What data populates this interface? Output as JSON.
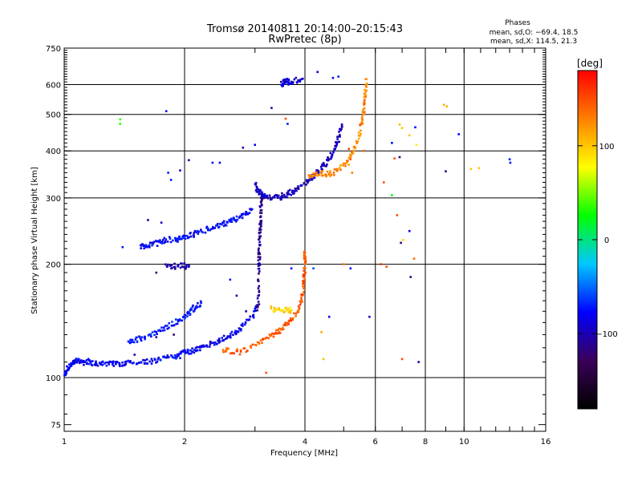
{
  "chart_data": {
    "type": "scatter",
    "title": "Tromsø 20140811 20:14:00–20:15:43",
    "subtitle": "RwPretec (8p)",
    "phases_header": "Phases",
    "phases_lines": [
      "mean, sd,O: −69.4, 18.5",
      "mean, sd,X: 114.5, 21.3"
    ],
    "xlabel": "Frequency [MHz]",
    "ylabel": "Stationary phase Virtual Height [km]",
    "x_scale": "log",
    "y_scale": "log",
    "xlim": [
      1,
      16
    ],
    "ylim": [
      72,
      750
    ],
    "x_ticks": [
      1,
      2,
      4,
      6,
      8,
      10,
      16
    ],
    "x_ticklabels": [
      "1",
      "2",
      "4",
      "6",
      "8",
      "10",
      "16"
    ],
    "x_gridlines": [
      2,
      4,
      6,
      8,
      10
    ],
    "y_ticks": [
      75,
      100,
      200,
      300,
      400,
      500,
      600,
      750
    ],
    "y_ticklabels": [
      "75",
      "100",
      "200",
      "300",
      "400",
      "500",
      "600",
      "750"
    ],
    "y_gridlines": [
      100,
      200,
      300,
      400,
      500,
      600
    ],
    "grid": true,
    "colorbar": {
      "label": "[deg]",
      "range": [
        -180,
        180
      ],
      "ticks": [
        100,
        0,
        -100
      ],
      "ticklabels": [
        "100",
        "0",
        "−100"
      ],
      "colors": [
        "#000000",
        "#3a0058",
        "#0000ff",
        "#00c8ff",
        "#00ff00",
        "#ffff00",
        "#ff8000",
        "#ff0000"
      ]
    },
    "traces": [
      {
        "phase": -80,
        "points": [
          [
            1.0,
            102
          ],
          [
            1.02,
            106
          ],
          [
            1.05,
            109
          ],
          [
            1.08,
            111
          ],
          [
            1.12,
            110
          ],
          [
            1.18,
            109
          ],
          [
            1.25,
            109
          ],
          [
            1.35,
            109
          ],
          [
            1.45,
            109
          ],
          [
            1.6,
            110
          ],
          [
            1.75,
            112
          ],
          [
            1.9,
            114
          ],
          [
            2.0,
            116
          ],
          [
            2.1,
            118
          ],
          [
            2.2,
            120
          ],
          [
            2.35,
            123
          ],
          [
            2.5,
            127
          ],
          [
            2.65,
            131
          ],
          [
            2.8,
            137
          ],
          [
            2.95,
            145
          ],
          [
            3.05,
            155
          ]
        ]
      },
      {
        "phase": -72,
        "points": [
          [
            1.45,
            123
          ],
          [
            1.55,
            127
          ],
          [
            1.7,
            131
          ],
          [
            1.85,
            138
          ],
          [
            2.0,
            145
          ],
          [
            2.1,
            152
          ],
          [
            2.2,
            158
          ]
        ]
      },
      {
        "phase": -78,
        "points": [
          [
            1.55,
            221
          ],
          [
            1.65,
            226
          ],
          [
            1.75,
            230
          ],
          [
            1.9,
            233
          ],
          [
            2.05,
            238
          ],
          [
            2.2,
            244
          ],
          [
            2.35,
            250
          ],
          [
            2.5,
            256
          ],
          [
            2.65,
            263
          ],
          [
            2.8,
            270
          ],
          [
            2.95,
            280
          ]
        ]
      },
      {
        "phase": -98,
        "points": [
          [
            3.0,
            330
          ],
          [
            3.05,
            312
          ],
          [
            3.15,
            305
          ],
          [
            3.3,
            301
          ],
          [
            3.5,
            303
          ],
          [
            3.7,
            310
          ],
          [
            3.9,
            320
          ],
          [
            4.1,
            335
          ],
          [
            4.3,
            350
          ],
          [
            4.5,
            370
          ],
          [
            4.7,
            395
          ],
          [
            4.85,
            430
          ],
          [
            4.95,
            470
          ]
        ]
      },
      {
        "phase": -112,
        "points": [
          [
            3.05,
            150
          ],
          [
            3.06,
            175
          ],
          [
            3.07,
            200
          ],
          [
            3.08,
            225
          ],
          [
            3.09,
            250
          ],
          [
            3.1,
            275
          ],
          [
            3.11,
            300
          ]
        ]
      },
      {
        "phase": 145,
        "points": [
          [
            2.5,
            118
          ],
          [
            2.75,
            117
          ],
          [
            3.0,
            121
          ],
          [
            3.2,
            127
          ],
          [
            3.4,
            132
          ],
          [
            3.6,
            138
          ],
          [
            3.8,
            147
          ],
          [
            3.92,
            160
          ],
          [
            3.97,
            175
          ],
          [
            3.99,
            190
          ],
          [
            4.0,
            205
          ],
          [
            4.0,
            215
          ]
        ]
      },
      {
        "phase": 125,
        "points": [
          [
            4.1,
            345
          ],
          [
            4.4,
            348
          ],
          [
            4.7,
            350
          ],
          [
            5.1,
            370
          ],
          [
            5.3,
            400
          ],
          [
            5.5,
            450
          ],
          [
            5.6,
            500
          ],
          [
            5.65,
            550
          ],
          [
            5.7,
            620
          ]
        ]
      },
      {
        "phase": 95,
        "points": [
          [
            3.3,
            152
          ],
          [
            3.5,
            150
          ],
          [
            3.7,
            151
          ]
        ]
      },
      {
        "phase": -90,
        "points": [
          [
            3.5,
            600
          ],
          [
            3.6,
            615
          ],
          [
            3.7,
            608
          ],
          [
            3.95,
            622
          ]
        ]
      },
      {
        "phase": -100,
        "points": [
          [
            1.8,
            197
          ],
          [
            1.95,
            198
          ],
          [
            2.05,
            197
          ]
        ]
      }
    ],
    "scatter_points": [
      {
        "x": 1.38,
        "y": 485,
        "phase": 35
      },
      {
        "x": 1.38,
        "y": 472,
        "phase": 35
      },
      {
        "x": 1.8,
        "y": 510,
        "phase": -75
      },
      {
        "x": 1.82,
        "y": 350,
        "phase": -70
      },
      {
        "x": 1.85,
        "y": 335,
        "phase": -72
      },
      {
        "x": 1.95,
        "y": 355,
        "phase": -90
      },
      {
        "x": 2.05,
        "y": 378,
        "phase": -100
      },
      {
        "x": 2.35,
        "y": 372,
        "phase": -75
      },
      {
        "x": 2.45,
        "y": 372,
        "phase": -75
      },
      {
        "x": 2.8,
        "y": 408,
        "phase": -110
      },
      {
        "x": 3.3,
        "y": 520,
        "phase": -110
      },
      {
        "x": 3.58,
        "y": 487,
        "phase": 150
      },
      {
        "x": 3.62,
        "y": 472,
        "phase": -70
      },
      {
        "x": 4.3,
        "y": 648,
        "phase": -90
      },
      {
        "x": 4.7,
        "y": 625,
        "phase": -80
      },
      {
        "x": 4.85,
        "y": 630,
        "phase": -70
      },
      {
        "x": 6.3,
        "y": 330,
        "phase": 150
      },
      {
        "x": 6.6,
        "y": 305,
        "phase": 20
      },
      {
        "x": 6.7,
        "y": 382,
        "phase": 145
      },
      {
        "x": 6.9,
        "y": 385,
        "phase": -115
      },
      {
        "x": 6.8,
        "y": 270,
        "phase": 150
      },
      {
        "x": 6.95,
        "y": 228,
        "phase": -115
      },
      {
        "x": 7.05,
        "y": 232,
        "phase": 90
      },
      {
        "x": 7.3,
        "y": 245,
        "phase": -85
      },
      {
        "x": 7.35,
        "y": 185,
        "phase": -120
      },
      {
        "x": 7.5,
        "y": 207,
        "phase": 140
      },
      {
        "x": 6.9,
        "y": 470,
        "phase": 105
      },
      {
        "x": 7.0,
        "y": 460,
        "phase": 100
      },
      {
        "x": 7.3,
        "y": 440,
        "phase": 100
      },
      {
        "x": 7.55,
        "y": 462,
        "phase": -75
      },
      {
        "x": 7.6,
        "y": 415,
        "phase": 85
      },
      {
        "x": 6.6,
        "y": 420,
        "phase": -75
      },
      {
        "x": 6.2,
        "y": 200,
        "phase": 160
      },
      {
        "x": 6.4,
        "y": 197,
        "phase": 150
      },
      {
        "x": 7.0,
        "y": 112,
        "phase": 150
      },
      {
        "x": 7.7,
        "y": 110,
        "phase": -100
      },
      {
        "x": 8.9,
        "y": 530,
        "phase": 110
      },
      {
        "x": 9.05,
        "y": 525,
        "phase": 110
      },
      {
        "x": 9.0,
        "y": 353,
        "phase": -115
      },
      {
        "x": 9.7,
        "y": 443,
        "phase": -80
      },
      {
        "x": 10.4,
        "y": 358,
        "phase": 100
      },
      {
        "x": 10.9,
        "y": 360,
        "phase": 100
      },
      {
        "x": 13.0,
        "y": 380,
        "phase": -70
      },
      {
        "x": 13.05,
        "y": 372,
        "phase": -72
      },
      {
        "x": 4.6,
        "y": 145,
        "phase": -80
      },
      {
        "x": 5.8,
        "y": 145,
        "phase": -100
      },
      {
        "x": 4.4,
        "y": 132,
        "phase": 110
      },
      {
        "x": 4.45,
        "y": 112,
        "phase": 105
      },
      {
        "x": 3.2,
        "y": 103,
        "phase": 150
      },
      {
        "x": 3.0,
        "y": 415,
        "phase": -80
      },
      {
        "x": 5.15,
        "y": 405,
        "phase": 150
      },
      {
        "x": 5.2,
        "y": 380,
        "phase": 140
      },
      {
        "x": 5.25,
        "y": 350,
        "phase": 130
      },
      {
        "x": 5.5,
        "y": 470,
        "phase": 150
      },
      {
        "x": 5.6,
        "y": 400,
        "phase": 140
      },
      {
        "x": 5.0,
        "y": 200,
        "phase": 130
      },
      {
        "x": 5.2,
        "y": 195,
        "phase": -80
      },
      {
        "x": 4.2,
        "y": 195,
        "phase": -60
      },
      {
        "x": 3.7,
        "y": 195,
        "phase": -80
      },
      {
        "x": 1.15,
        "y": 112,
        "phase": -80
      },
      {
        "x": 1.3,
        "y": 110,
        "phase": -80
      },
      {
        "x": 1.5,
        "y": 115,
        "phase": -95
      },
      {
        "x": 1.7,
        "y": 128,
        "phase": -110
      },
      {
        "x": 1.88,
        "y": 130,
        "phase": -115
      },
      {
        "x": 1.62,
        "y": 262,
        "phase": -110
      },
      {
        "x": 1.75,
        "y": 258,
        "phase": -100
      },
      {
        "x": 1.7,
        "y": 190,
        "phase": -120
      },
      {
        "x": 1.78,
        "y": 228,
        "phase": -80
      },
      {
        "x": 1.4,
        "y": 222,
        "phase": -70
      },
      {
        "x": 2.6,
        "y": 182,
        "phase": -70
      },
      {
        "x": 2.7,
        "y": 165,
        "phase": -90
      },
      {
        "x": 2.85,
        "y": 150,
        "phase": -110
      }
    ]
  }
}
